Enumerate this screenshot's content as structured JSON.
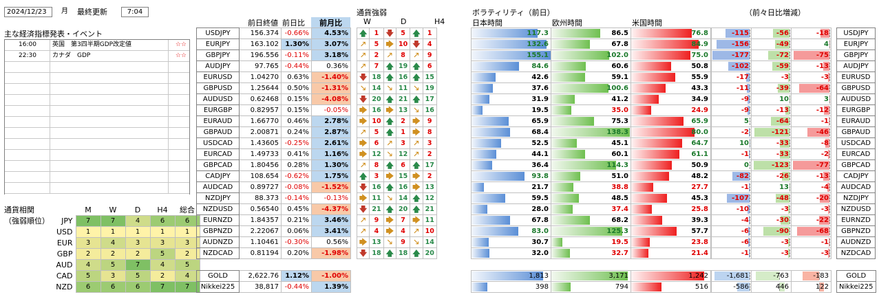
{
  "header": {
    "date": "2024/12/23",
    "weekday": "月",
    "updated_label": "最終更新",
    "time": "7:04"
  },
  "events": {
    "title": "主な経済指標発表・イベント",
    "rows": [
      {
        "time": "16:00",
        "name": "英国　第3四半期GDP改定値",
        "stars": "☆☆"
      },
      {
        "time": "22:30",
        "name": "カナダ　GDP",
        "stars": "☆☆"
      },
      {
        "time": "",
        "name": "",
        "stars": ""
      },
      {
        "time": "",
        "name": "",
        "stars": ""
      },
      {
        "time": "",
        "name": "",
        "stars": ""
      },
      {
        "time": "",
        "name": "",
        "stars": ""
      },
      {
        "time": "",
        "name": "",
        "stars": ""
      },
      {
        "time": "",
        "name": "",
        "stars": ""
      },
      {
        "time": "",
        "name": "",
        "stars": ""
      },
      {
        "time": "",
        "name": "",
        "stars": ""
      },
      {
        "time": "",
        "name": "",
        "stars": ""
      },
      {
        "time": "",
        "name": "",
        "stars": ""
      },
      {
        "time": "",
        "name": "",
        "stars": ""
      },
      {
        "time": "",
        "name": "",
        "stars": ""
      }
    ]
  },
  "corr": {
    "title1": "通貨相関",
    "title2": "（強弱順位）",
    "headers": [
      "M",
      "W",
      "D",
      "H4",
      "総合"
    ],
    "rows": [
      {
        "cur": "JPY",
        "vals": [
          7,
          7,
          4,
          6,
          6
        ]
      },
      {
        "cur": "USD",
        "vals": [
          1,
          1,
          1,
          1,
          1
        ]
      },
      {
        "cur": "EUR",
        "vals": [
          3,
          4,
          3,
          3,
          3
        ]
      },
      {
        "cur": "GBP",
        "vals": [
          2,
          2,
          2,
          5,
          2
        ]
      },
      {
        "cur": "AUD",
        "vals": [
          4,
          5,
          7,
          4,
          5
        ]
      },
      {
        "cur": "CAD",
        "vals": [
          5,
          3,
          5,
          2,
          4
        ]
      },
      {
        "cur": "NZD",
        "vals": [
          6,
          6,
          6,
          7,
          7
        ]
      }
    ],
    "colors": {
      "1": "#fff3a8",
      "2": "#f4ec9c",
      "3": "#e6e492",
      "4": "#cfdc8a",
      "5": "#bcd580",
      "6": "#9ccb72",
      "7": "#7fc064"
    }
  },
  "price_headers": {
    "close": "前日終値",
    "dod": "前日比",
    "mom": "前月比"
  },
  "strength_headers": {
    "title": "通貨強弱",
    "w": "W",
    "d": "D",
    "h4": "H4"
  },
  "vol_headers": {
    "title": "ボラティリティ（前日）",
    "jp": "日本時間",
    "eu": "欧州時間",
    "us": "米国時間",
    "diff": "（前々日比増減）"
  },
  "rows": [
    {
      "pair": "USDJPY",
      "close": "156.374",
      "dod": "-0.66%",
      "mom": "4.53%",
      "wa": "up",
      "wn": "1",
      "da": "dn",
      "dn": "5",
      "ha": "up",
      "hn": "1",
      "jp": 117.3,
      "eu": 86.5,
      "us": 76.8,
      "d1": -115,
      "d2": -56,
      "d3": -18
    },
    {
      "pair": "EURJPY",
      "close": "163.102",
      "dod": "1.30%",
      "mom": "3.07%",
      "wa": "ur",
      "wn": "5",
      "da": "rt",
      "dn": "10",
      "ha": "dn",
      "hn": "4",
      "jp": 132.6,
      "eu": 67.8,
      "us": 84.9,
      "d1": -156,
      "d2": -49,
      "d3": 4
    },
    {
      "pair": "GBPJPY",
      "close": "196.556",
      "dod": "-0.11%",
      "mom": "3.18%",
      "wa": "ur",
      "wn": "2",
      "da": "ur",
      "dn": "8",
      "ha": "ur",
      "hn": "9",
      "jp": 155.1,
      "eu": 102.0,
      "us": 75.0,
      "d1": -177,
      "d2": -72,
      "d3": -75
    },
    {
      "pair": "AUDJPY",
      "close": "97.765",
      "dod": "-0.44%",
      "mom": "0.36%",
      "wa": "ur",
      "wn": "7",
      "da": "up",
      "dn": "19",
      "ha": "up",
      "hn": "6",
      "jp": 84.6,
      "eu": 60.6,
      "us": 50.8,
      "d1": -102,
      "d2": -59,
      "d3": -13
    },
    {
      "pair": "EURUSD",
      "close": "1.04270",
      "dod": "0.63%",
      "mom": "-1.40%",
      "wa": "dn",
      "wn": "18",
      "da": "up",
      "dn": "16",
      "ha": "up",
      "hn": "15",
      "jp": 42.6,
      "eu": 59.1,
      "us": 55.9,
      "d1": -17,
      "d2": -3,
      "d3": -3
    },
    {
      "pair": "GBPUSD",
      "close": "1.25644",
      "dod": "0.50%",
      "mom": "-1.31%",
      "wa": "dr",
      "wn": "14",
      "da": "dr",
      "dn": "11",
      "ha": "dr",
      "hn": "19",
      "jp": 37.6,
      "eu": 100.6,
      "us": 43.3,
      "d1": -11,
      "d2": -39,
      "d3": -64
    },
    {
      "pair": "AUDUSD",
      "close": "0.62468",
      "dod": "0.15%",
      "mom": "-4.08%",
      "wa": "dn",
      "wn": "20",
      "da": "up",
      "dn": "21",
      "ha": "up",
      "hn": "17",
      "jp": 31.9,
      "eu": 41.2,
      "us": 34.9,
      "d1": -9,
      "d2": 10,
      "d3": 3
    },
    {
      "pair": "EURGBP",
      "close": "0.82957",
      "dod": "0.15%",
      "mom": "-0.05%",
      "wa": "rt",
      "wn": "16",
      "da": "rt",
      "dn": "13",
      "ha": "dr",
      "hn": "16",
      "jp": 19.5,
      "eu": 35.0,
      "us": 24.9,
      "d1": -9,
      "d2": -13,
      "d3": -12
    },
    {
      "pair": "EURAUD",
      "close": "1.66770",
      "dod": "0.46%",
      "mom": "2.78%",
      "wa": "rt",
      "wn": "10",
      "da": "up",
      "dn": "2",
      "ha": "rt",
      "hn": "9",
      "jp": 65.9,
      "eu": 75.3,
      "us": 65.9,
      "d1": 5,
      "d2": -64,
      "d3": -1
    },
    {
      "pair": "GBPAUD",
      "close": "2.00871",
      "dod": "0.24%",
      "mom": "2.87%",
      "wa": "ur",
      "wn": "5",
      "da": "up",
      "dn": "1",
      "ha": "rt",
      "hn": "8",
      "jp": 68.4,
      "eu": 138.3,
      "us": 80.0,
      "d1": -2,
      "d2": -121,
      "d3": -46
    },
    {
      "pair": "USDCAD",
      "close": "1.43605",
      "dod": "-0.25%",
      "mom": "2.61%",
      "wa": "rt",
      "wn": "6",
      "da": "ur",
      "dn": "3",
      "ha": "ur",
      "hn": "3",
      "jp": 52.5,
      "eu": 45.1,
      "us": 64.7,
      "d1": 10,
      "d2": -33,
      "d3": -8
    },
    {
      "pair": "EURCAD",
      "close": "1.49733",
      "dod": "0.41%",
      "mom": "1.16%",
      "wa": "rt",
      "wn": "12",
      "da": "dr",
      "dn": "12",
      "ha": "ur",
      "hn": "2",
      "jp": 44.1,
      "eu": 60.1,
      "us": 61.1,
      "d1": -1,
      "d2": -33,
      "d3": -2
    },
    {
      "pair": "GBPCAD",
      "close": "1.80456",
      "dod": "0.28%",
      "mom": "1.30%",
      "wa": "ur",
      "wn": "8",
      "da": "up",
      "dn": "6",
      "ha": "up",
      "hn": "17",
      "jp": 36.4,
      "eu": 114.3,
      "us": 50.9,
      "d1": 0,
      "d2": -123,
      "d3": -77
    },
    {
      "pair": "CADJPY",
      "close": "108.654",
      "dod": "-0.62%",
      "mom": "1.75%",
      "wa": "up",
      "wn": "3",
      "da": "rt",
      "dn": "15",
      "ha": "rt",
      "hn": "2",
      "jp": 93.8,
      "eu": 51.0,
      "us": 48.2,
      "d1": -82,
      "d2": -26,
      "d3": -13
    },
    {
      "pair": "AUDCAD",
      "close": "0.89727",
      "dod": "-0.08%",
      "mom": "-1.52%",
      "wa": "dn",
      "wn": "16",
      "da": "up",
      "dn": "16",
      "ha": "rt",
      "hn": "13",
      "jp": 21.7,
      "eu": 38.8,
      "us": 27.7,
      "d1": -1,
      "d2": 13,
      "d3": -4
    },
    {
      "pair": "NZDJPY",
      "close": "88.373",
      "dod": "-0.14%",
      "mom": "-0.13%",
      "wa": "rt",
      "wn": "11",
      "da": "dr",
      "dn": "14",
      "ha": "up",
      "hn": "12",
      "jp": 59.5,
      "eu": 48.5,
      "us": 45.3,
      "d1": -107,
      "d2": -48,
      "d3": -20
    },
    {
      "pair": "NZDUSD",
      "close": "0.56540",
      "dod": "0.45%",
      "mom": "-4.37%",
      "wa": "dn",
      "wn": "21",
      "da": "up",
      "dn": "20",
      "ha": "up",
      "hn": "21",
      "jp": 28.0,
      "eu": 37.4,
      "us": 25.8,
      "d1": -10,
      "d2": -3,
      "d3": -3
    },
    {
      "pair": "EURNZD",
      "close": "1.84357",
      "dod": "0.21%",
      "mom": "3.46%",
      "wa": "ur",
      "wn": "9",
      "da": "rt",
      "dn": "7",
      "ha": "rt",
      "hn": "11",
      "jp": 67.8,
      "eu": 68.2,
      "us": 39.3,
      "d1": -4,
      "d2": -30,
      "d3": -22
    },
    {
      "pair": "GBPNZD",
      "close": "2.22067",
      "dod": "0.06%",
      "mom": "3.41%",
      "wa": "ur",
      "wn": "4",
      "da": "rt",
      "dn": "4",
      "ha": "ur",
      "hn": "10",
      "jp": 83.0,
      "eu": 125.3,
      "us": 57.7,
      "d1": -6,
      "d2": -90,
      "d3": -68
    },
    {
      "pair": "AUDNZD",
      "close": "1.10461",
      "dod": "-0.30%",
      "mom": "0.56%",
      "wa": "rt",
      "wn": "13",
      "da": "dr",
      "dn": "9",
      "ha": "dr",
      "hn": "14",
      "jp": 30.7,
      "eu": 19.5,
      "us": 23.8,
      "d1": -6,
      "d2": -3,
      "d3": -1
    },
    {
      "pair": "NZDCAD",
      "close": "0.81194",
      "dod": "0.20%",
      "mom": "-1.98%",
      "wa": "dn",
      "wn": "18",
      "da": "up",
      "dn": "18",
      "ha": "up",
      "hn": "20",
      "jp": 32.0,
      "eu": 32.7,
      "us": 21.4,
      "d1": -1,
      "d2": -3,
      "d3": -3
    }
  ],
  "extras": [
    {
      "pair": "GOLD",
      "close": "2,622.76",
      "dod": "1.12%",
      "mom": "-1.00%",
      "jp": "1,813",
      "eu": "3,171",
      "us": "1,242",
      "d1": "-1,681",
      "d2": "-763",
      "d3": "-183",
      "d1v": -1681,
      "d2v": -763,
      "d3v": -183,
      "jpv": 1813,
      "euv": 3171,
      "usv": 1242
    },
    {
      "pair": "Nikkei225",
      "close": "38,817",
      "dod": "-0.44%",
      "mom": "1.39%",
      "jp": "398",
      "eu": "794",
      "us": "516",
      "d1": "-586",
      "d2": "446",
      "d3": "122",
      "d1v": -586,
      "d2v": 446,
      "d3v": 122,
      "jpv": 398,
      "euv": 794,
      "usv": 516
    }
  ]
}
